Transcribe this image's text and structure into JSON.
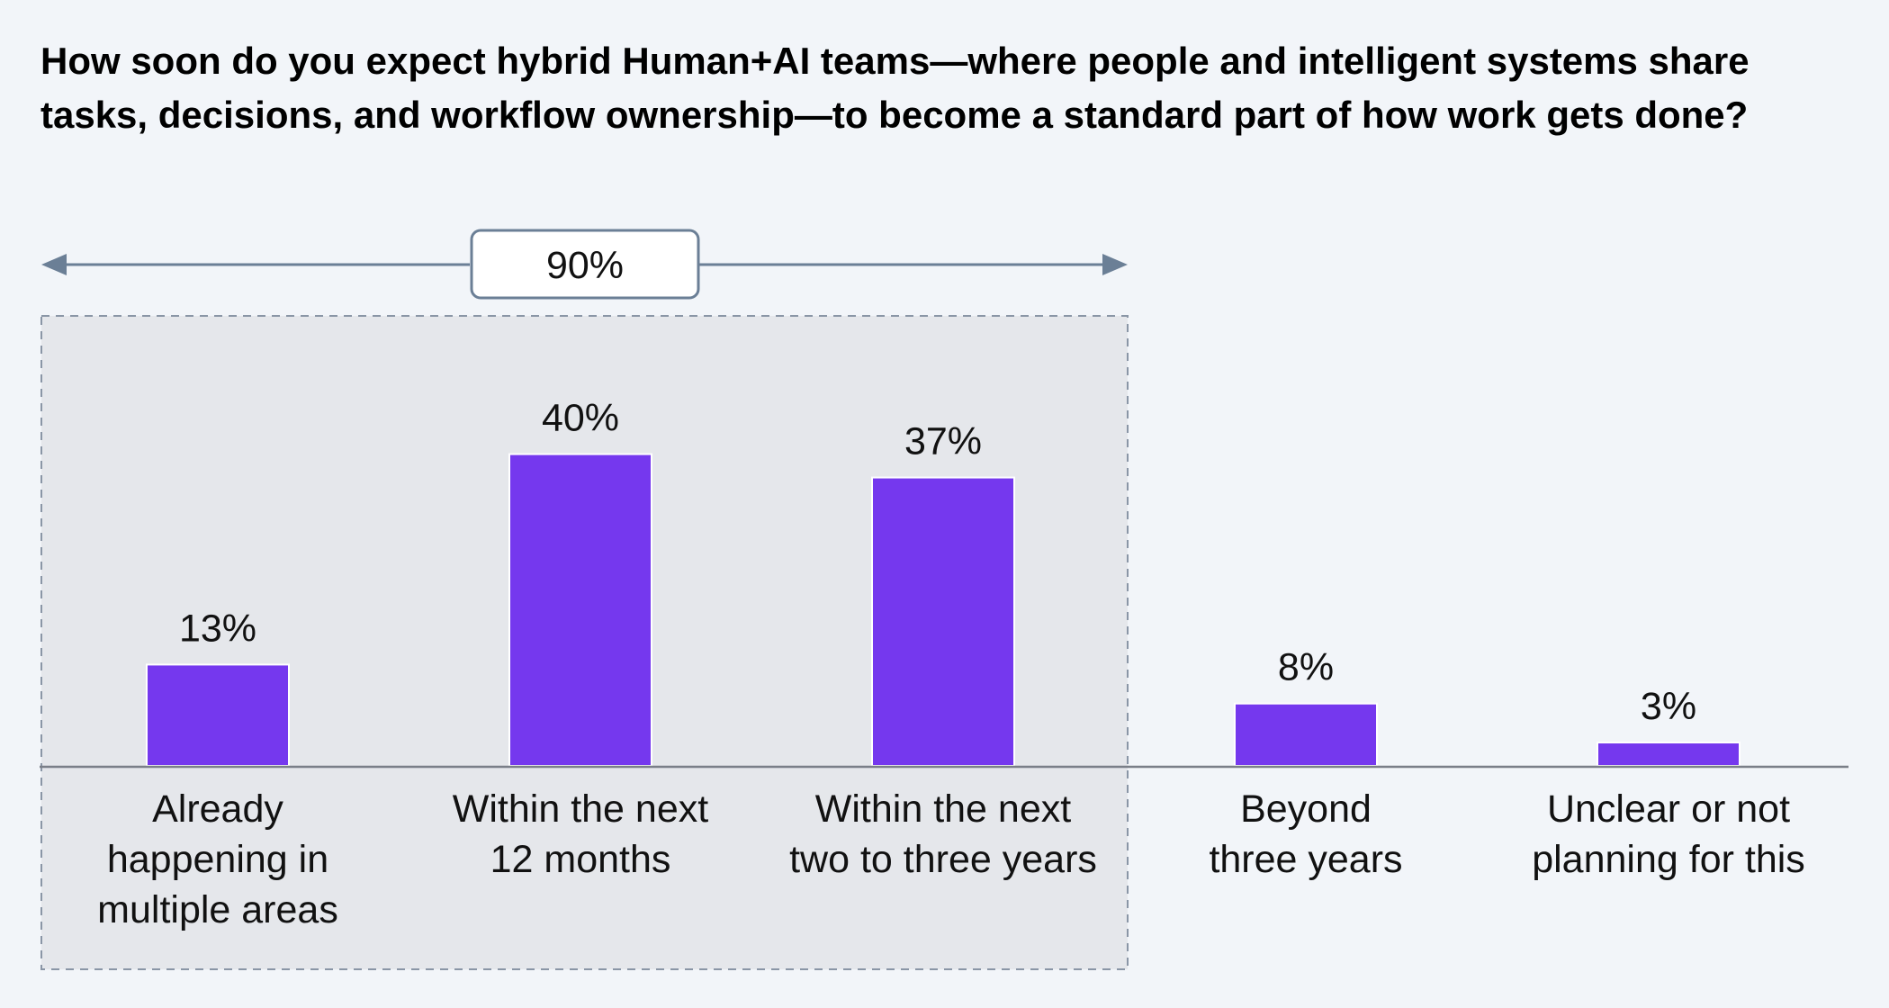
{
  "chart_data": {
    "type": "bar",
    "title": "How soon do you expect hybrid Human+AI teams—where people and intelligent systems share tasks, decisions, and workflow ownership—to become a standard part of how work gets done?",
    "categories": [
      [
        "Already",
        "happening in",
        "multiple areas"
      ],
      [
        "Within the next",
        "12 months"
      ],
      [
        "Within the next",
        "two to three years"
      ],
      [
        "Beyond",
        "three years"
      ],
      [
        "Unclear or not",
        "planning for this"
      ]
    ],
    "values": [
      13,
      40,
      37,
      8,
      3
    ],
    "value_labels": [
      "13%",
      "40%",
      "37%",
      "8%",
      "3%"
    ],
    "ylim": [
      0,
      45
    ],
    "grid": false,
    "bracket": {
      "label": "90%",
      "covers_categories": [
        0,
        1,
        2
      ]
    },
    "colors": {
      "bar": "#7538ee",
      "background": "#f2f5f9",
      "highlight_box": "#e5e7eb",
      "bracket": "#6b7f96"
    }
  }
}
